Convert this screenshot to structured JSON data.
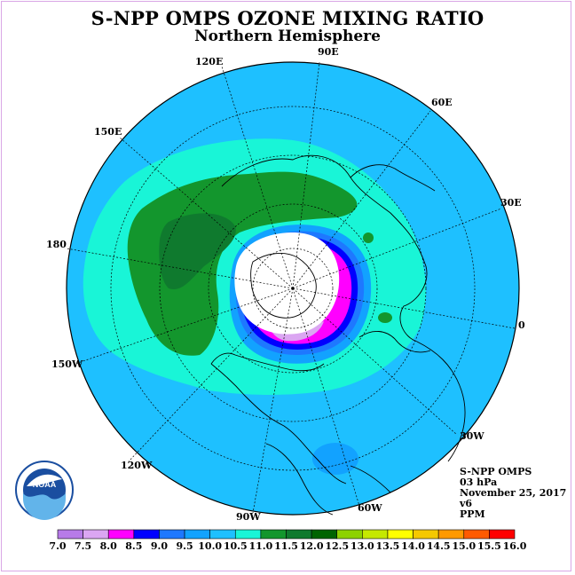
{
  "header": {
    "title": "S-NPP OMPS OZONE MIXING RATIO",
    "subtitle": "Northern Hemisphere"
  },
  "map": {
    "projection": "polar stereographic, north pole",
    "longitude_labels": [
      "90E",
      "60E",
      "30E",
      "0",
      "30W",
      "60W",
      "90W",
      "120W",
      "150W",
      "180",
      "150E",
      "120E"
    ]
  },
  "info": {
    "instrument": "S-NPP OMPS",
    "level": "03 hPa",
    "date": "November 25, 2017",
    "version": "v6",
    "units": "PPM"
  },
  "logo": {
    "text": "NOAA"
  },
  "colorbar": {
    "labels": [
      "7.0",
      "7.5",
      "8.0",
      "8.5",
      "9.0",
      "9.5",
      "10.0",
      "10.5",
      "11.0",
      "11.5",
      "12.0",
      "12.5",
      "13.0",
      "13.5",
      "14.0",
      "14.5",
      "15.0",
      "15.5",
      "16.0"
    ],
    "colors": [
      "#b77be8",
      "#dba6f2",
      "#ff00ff",
      "#0000ff",
      "#1e78ff",
      "#12a2ff",
      "#1ec0ff",
      "#19f5d7",
      "#13962d",
      "#0f7a2e",
      "#006400",
      "#8dd200",
      "#c5e800",
      "#ffff00",
      "#f5c800",
      "#ff9900",
      "#ff5a00",
      "#ff0000",
      "#8b4513"
    ]
  },
  "colors": {
    "contour_10_0": "#1ec0ff",
    "contour_10_5": "#19f5d7",
    "contour_11_0": "#13962d",
    "contour_11_5": "#0f7a2e",
    "contour_9_5": "#12a2ff",
    "contour_9_0": "#1e78ff",
    "contour_8_5": "#0000ff",
    "contour_8_0": "#ff00ff",
    "contour_7_5": "#dba6f2",
    "no_data": "#ffffff"
  }
}
